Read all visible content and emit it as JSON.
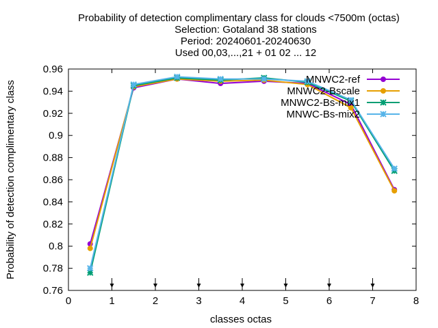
{
  "chart_data": {
    "type": "line",
    "title_lines": [
      "Probability of detection complimentary class  for clouds <7500m (octas)",
      "Selection: Gotaland     38 stations",
      "Period: 20240601-20240630",
      "Used 00,03,...,21 + 01 02 ... 12"
    ],
    "xlabel": "classes octas",
    "ylabel": "Probability of detection complimentary class",
    "xlim": [
      0,
      8
    ],
    "ylim": [
      0.76,
      0.96
    ],
    "xticks": [
      "0",
      "1",
      "2",
      "3",
      "4",
      "5",
      "6",
      "7",
      "8"
    ],
    "yticks": [
      "0.76",
      "0.78",
      "0.8",
      "0.82",
      "0.84",
      "0.86",
      "0.88",
      "0.9",
      "0.92",
      "0.94",
      "0.96"
    ],
    "legend_position": "top-right",
    "x": [
      0.5,
      1.5,
      2.5,
      3.5,
      4.5,
      5.5,
      6.5,
      7.5
    ],
    "series": [
      {
        "name": "MNWC2-ref",
        "color": "#9400d3",
        "marker": "circle",
        "values": [
          0.802,
          0.943,
          0.951,
          0.947,
          0.949,
          0.947,
          0.928,
          0.851
        ]
      },
      {
        "name": "MNWC2-Bscale",
        "color": "#e69f00",
        "marker": "circle",
        "values": [
          0.798,
          0.944,
          0.951,
          0.949,
          0.95,
          0.946,
          0.925,
          0.85
        ]
      },
      {
        "name": "MNWC2-Bs-mix1",
        "color": "#009e73",
        "marker": "cross",
        "values": [
          0.776,
          0.945,
          0.952,
          0.95,
          0.952,
          0.948,
          0.931,
          0.868
        ]
      },
      {
        "name": "MNWC-Bs-mix2",
        "color": "#56b4e9",
        "marker": "cross",
        "values": [
          0.78,
          0.946,
          0.953,
          0.951,
          0.951,
          0.949,
          0.932,
          0.87
        ]
      }
    ]
  }
}
